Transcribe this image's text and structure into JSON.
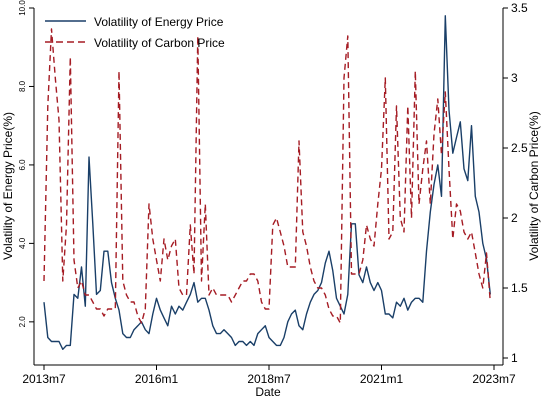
{
  "chart_data": {
    "type": "line",
    "xlabel": "Date",
    "ylabel_left": "Volatility of Energy Price(%)",
    "ylabel_right": "Volatility of Carbon Price(%)",
    "x_ticks": [
      "2013m7",
      "2016m1",
      "2018m7",
      "2021m1",
      "2023m7"
    ],
    "x_range": [
      "2013-07",
      "2023-07"
    ],
    "y_left": {
      "ylim": [
        0.9,
        10.0
      ],
      "ticks": [
        "2.0",
        "4.0",
        "6.0",
        "8.0",
        "10.0"
      ],
      "tick_values": [
        2,
        4,
        6,
        8,
        10
      ]
    },
    "y_right": {
      "ylim": [
        0.95,
        3.5
      ],
      "ticks": [
        "1",
        "1.5",
        "2",
        "2.5",
        "3",
        "3.5"
      ],
      "tick_values": [
        1,
        1.5,
        2,
        2.5,
        3,
        3.5
      ]
    },
    "legend_position": "top-left",
    "series": [
      {
        "name": "Volatility of Energy Price",
        "axis": "left",
        "color": "#1a3f68",
        "style": "solid",
        "points": [
          [
            "2013-07",
            2.5
          ],
          [
            "2013-08",
            1.6
          ],
          [
            "2013-09",
            1.5
          ],
          [
            "2013-10",
            1.5
          ],
          [
            "2013-11",
            1.5
          ],
          [
            "2013-12",
            1.3
          ],
          [
            "2014-01",
            1.4
          ],
          [
            "2014-02",
            1.4
          ],
          [
            "2014-03",
            2.7
          ],
          [
            "2014-04",
            2.6
          ],
          [
            "2014-05",
            3.4
          ],
          [
            "2014-06",
            2.4
          ],
          [
            "2014-07",
            6.2
          ],
          [
            "2014-08",
            4.5
          ],
          [
            "2014-09",
            2.7
          ],
          [
            "2014-10",
            2.8
          ],
          [
            "2014-11",
            3.8
          ],
          [
            "2014-12",
            3.8
          ],
          [
            "2015-01",
            3.0
          ],
          [
            "2015-02",
            2.6
          ],
          [
            "2015-03",
            2.3
          ],
          [
            "2015-04",
            1.7
          ],
          [
            "2015-05",
            1.6
          ],
          [
            "2015-06",
            1.6
          ],
          [
            "2015-07",
            1.8
          ],
          [
            "2015-08",
            1.9
          ],
          [
            "2015-09",
            2.0
          ],
          [
            "2015-10",
            1.8
          ],
          [
            "2015-11",
            1.7
          ],
          [
            "2015-12",
            2.2
          ],
          [
            "2016-01",
            2.6
          ],
          [
            "2016-02",
            2.3
          ],
          [
            "2016-03",
            2.1
          ],
          [
            "2016-04",
            1.9
          ],
          [
            "2016-05",
            2.4
          ],
          [
            "2016-06",
            2.2
          ],
          [
            "2016-07",
            2.4
          ],
          [
            "2016-08",
            2.3
          ],
          [
            "2016-09",
            2.5
          ],
          [
            "2016-10",
            2.7
          ],
          [
            "2016-11",
            3.0
          ],
          [
            "2016-12",
            2.5
          ],
          [
            "2017-01",
            2.6
          ],
          [
            "2017-02",
            2.6
          ],
          [
            "2017-03",
            2.3
          ],
          [
            "2017-04",
            1.9
          ],
          [
            "2017-05",
            1.7
          ],
          [
            "2017-06",
            1.7
          ],
          [
            "2017-07",
            1.8
          ],
          [
            "2017-08",
            1.7
          ],
          [
            "2017-09",
            1.6
          ],
          [
            "2017-10",
            1.4
          ],
          [
            "2017-11",
            1.5
          ],
          [
            "2017-12",
            1.5
          ],
          [
            "2018-01",
            1.4
          ],
          [
            "2018-02",
            1.5
          ],
          [
            "2018-03",
            1.4
          ],
          [
            "2018-04",
            1.7
          ],
          [
            "2018-05",
            1.8
          ],
          [
            "2018-06",
            1.9
          ],
          [
            "2018-07",
            1.6
          ],
          [
            "2018-08",
            1.5
          ],
          [
            "2018-09",
            1.4
          ],
          [
            "2018-10",
            1.4
          ],
          [
            "2018-11",
            1.6
          ],
          [
            "2018-12",
            2.0
          ],
          [
            "2019-01",
            2.2
          ],
          [
            "2019-02",
            2.3
          ],
          [
            "2019-03",
            1.9
          ],
          [
            "2019-04",
            1.8
          ],
          [
            "2019-05",
            2.2
          ],
          [
            "2019-06",
            2.5
          ],
          [
            "2019-07",
            2.7
          ],
          [
            "2019-08",
            2.8
          ],
          [
            "2019-09",
            3.0
          ],
          [
            "2019-10",
            3.5
          ],
          [
            "2019-11",
            3.8
          ],
          [
            "2019-12",
            3.3
          ],
          [
            "2020-01",
            2.6
          ],
          [
            "2020-02",
            2.4
          ],
          [
            "2020-03",
            2.2
          ],
          [
            "2020-04",
            2.7
          ],
          [
            "2020-05",
            4.5
          ],
          [
            "2020-06",
            4.5
          ],
          [
            "2020-07",
            3.2
          ],
          [
            "2020-08",
            3.0
          ],
          [
            "2020-09",
            3.4
          ],
          [
            "2020-10",
            3.0
          ],
          [
            "2020-11",
            2.8
          ],
          [
            "2020-12",
            3.0
          ],
          [
            "2021-01",
            2.8
          ],
          [
            "2021-02",
            2.2
          ],
          [
            "2021-03",
            2.2
          ],
          [
            "2021-04",
            2.1
          ],
          [
            "2021-05",
            2.5
          ],
          [
            "2021-06",
            2.4
          ],
          [
            "2021-07",
            2.6
          ],
          [
            "2021-08",
            2.3
          ],
          [
            "2021-09",
            2.5
          ],
          [
            "2021-10",
            2.6
          ],
          [
            "2021-11",
            2.6
          ],
          [
            "2021-12",
            2.5
          ],
          [
            "2022-01",
            3.8
          ],
          [
            "2022-02",
            4.8
          ],
          [
            "2022-03",
            5.5
          ],
          [
            "2022-04",
            6.0
          ],
          [
            "2022-05",
            5.2
          ],
          [
            "2022-06",
            9.8
          ],
          [
            "2022-07",
            7.4
          ],
          [
            "2022-08",
            6.3
          ],
          [
            "2022-09",
            6.7
          ],
          [
            "2022-10",
            7.1
          ],
          [
            "2022-11",
            5.9
          ],
          [
            "2022-12",
            5.6
          ],
          [
            "2023-01",
            7.0
          ],
          [
            "2023-02",
            5.2
          ],
          [
            "2023-03",
            4.8
          ],
          [
            "2023-04",
            4.0
          ],
          [
            "2023-05",
            3.6
          ],
          [
            "2023-06",
            2.7
          ]
        ]
      },
      {
        "name": "Volatility of Carbon Price",
        "axis": "right",
        "color": "#a51c24",
        "style": "dashed",
        "points": [
          [
            "2013-07",
            1.55
          ],
          [
            "2013-08",
            2.8
          ],
          [
            "2013-09",
            3.35
          ],
          [
            "2013-10",
            3.0
          ],
          [
            "2013-11",
            2.7
          ],
          [
            "2013-12",
            1.55
          ],
          [
            "2014-01",
            1.95
          ],
          [
            "2014-02",
            3.15
          ],
          [
            "2014-03",
            1.7
          ],
          [
            "2014-04",
            1.5
          ],
          [
            "2014-05",
            1.55
          ],
          [
            "2014-06",
            1.45
          ],
          [
            "2014-07",
            1.45
          ],
          [
            "2014-08",
            1.4
          ],
          [
            "2014-09",
            1.35
          ],
          [
            "2014-10",
            1.35
          ],
          [
            "2014-11",
            1.3
          ],
          [
            "2014-12",
            1.35
          ],
          [
            "2015-01",
            1.35
          ],
          [
            "2015-02",
            1.35
          ],
          [
            "2015-03",
            3.05
          ],
          [
            "2015-04",
            1.55
          ],
          [
            "2015-05",
            1.45
          ],
          [
            "2015-06",
            1.4
          ],
          [
            "2015-07",
            1.4
          ],
          [
            "2015-08",
            1.3
          ],
          [
            "2015-09",
            1.25
          ],
          [
            "2015-10",
            1.35
          ],
          [
            "2015-11",
            2.1
          ],
          [
            "2015-12",
            1.85
          ],
          [
            "2016-01",
            1.7
          ],
          [
            "2016-02",
            1.55
          ],
          [
            "2016-03",
            1.85
          ],
          [
            "2016-04",
            1.7
          ],
          [
            "2016-05",
            1.8
          ],
          [
            "2016-06",
            1.85
          ],
          [
            "2016-07",
            1.5
          ],
          [
            "2016-08",
            1.45
          ],
          [
            "2016-09",
            1.45
          ],
          [
            "2016-10",
            1.95
          ],
          [
            "2016-11",
            1.6
          ],
          [
            "2016-12",
            3.3
          ],
          [
            "2017-01",
            1.55
          ],
          [
            "2017-02",
            2.1
          ],
          [
            "2017-03",
            1.45
          ],
          [
            "2017-04",
            1.5
          ],
          [
            "2017-05",
            1.45
          ],
          [
            "2017-06",
            1.45
          ],
          [
            "2017-07",
            1.45
          ],
          [
            "2017-08",
            1.45
          ],
          [
            "2017-09",
            1.4
          ],
          [
            "2017-10",
            1.45
          ],
          [
            "2017-11",
            1.5
          ],
          [
            "2017-12",
            1.55
          ],
          [
            "2018-01",
            1.55
          ],
          [
            "2018-02",
            1.6
          ],
          [
            "2018-03",
            1.6
          ],
          [
            "2018-04",
            1.55
          ],
          [
            "2018-05",
            1.4
          ],
          [
            "2018-06",
            1.35
          ],
          [
            "2018-07",
            1.35
          ],
          [
            "2018-08",
            1.95
          ],
          [
            "2018-09",
            2.0
          ],
          [
            "2018-10",
            1.9
          ],
          [
            "2018-11",
            1.8
          ],
          [
            "2018-12",
            1.65
          ],
          [
            "2019-01",
            1.65
          ],
          [
            "2019-02",
            1.65
          ],
          [
            "2019-03",
            2.55
          ],
          [
            "2019-04",
            1.9
          ],
          [
            "2019-05",
            1.8
          ],
          [
            "2019-06",
            1.65
          ],
          [
            "2019-07",
            1.55
          ],
          [
            "2019-08",
            1.5
          ],
          [
            "2019-09",
            1.5
          ],
          [
            "2019-10",
            1.45
          ],
          [
            "2019-11",
            1.35
          ],
          [
            "2019-12",
            1.3
          ],
          [
            "2020-01",
            1.3
          ],
          [
            "2020-02",
            1.25
          ],
          [
            "2020-03",
            3.0
          ],
          [
            "2020-04",
            3.3
          ],
          [
            "2020-05",
            1.6
          ],
          [
            "2020-06",
            1.6
          ],
          [
            "2020-07",
            1.6
          ],
          [
            "2020-08",
            1.7
          ],
          [
            "2020-09",
            1.95
          ],
          [
            "2020-10",
            1.85
          ],
          [
            "2020-11",
            1.8
          ],
          [
            "2020-12",
            2.1
          ],
          [
            "2021-01",
            2.35
          ],
          [
            "2021-02",
            3.0
          ],
          [
            "2021-03",
            1.85
          ],
          [
            "2021-04",
            1.9
          ],
          [
            "2021-05",
            2.8
          ],
          [
            "2021-06",
            2.0
          ],
          [
            "2021-07",
            1.9
          ],
          [
            "2021-08",
            2.8
          ],
          [
            "2021-09",
            2.0
          ],
          [
            "2021-10",
            3.05
          ],
          [
            "2021-11",
            2.1
          ],
          [
            "2021-12",
            2.35
          ],
          [
            "2022-01",
            2.55
          ],
          [
            "2022-02",
            2.1
          ],
          [
            "2022-03",
            2.6
          ],
          [
            "2022-04",
            2.85
          ],
          [
            "2022-05",
            2.45
          ],
          [
            "2022-06",
            2.9
          ],
          [
            "2022-07",
            2.35
          ],
          [
            "2022-08",
            1.85
          ],
          [
            "2022-09",
            2.1
          ],
          [
            "2022-10",
            2.05
          ],
          [
            "2022-11",
            1.9
          ],
          [
            "2022-12",
            1.85
          ],
          [
            "2023-01",
            1.9
          ],
          [
            "2023-02",
            1.75
          ],
          [
            "2023-03",
            1.6
          ],
          [
            "2023-04",
            1.5
          ],
          [
            "2023-05",
            1.75
          ],
          [
            "2023-06",
            1.4
          ]
        ]
      }
    ]
  }
}
